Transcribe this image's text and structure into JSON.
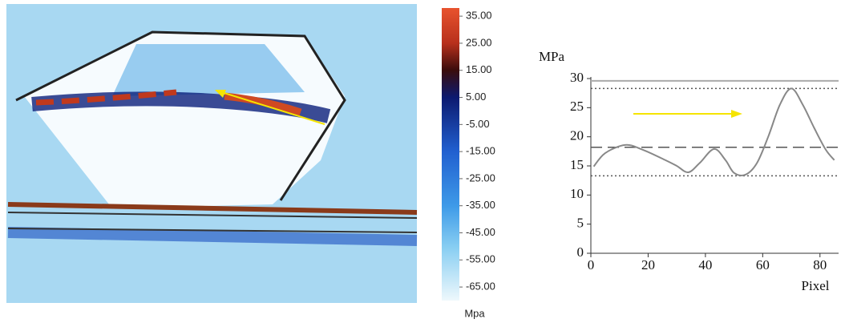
{
  "chart_data": [
    {
      "type": "colorbar",
      "label": "Mpa",
      "ylim": [
        -70,
        38
      ],
      "yticks": [
        {
          "value": 35,
          "label": "35.00"
        },
        {
          "value": 25,
          "label": "25.00"
        },
        {
          "value": 15,
          "label": "15.00"
        },
        {
          "value": 5,
          "label": "5.00"
        },
        {
          "value": -5,
          "label": "-5.00"
        },
        {
          "value": -15,
          "label": "-15.00"
        },
        {
          "value": -25,
          "label": "-25.00"
        },
        {
          "value": -35,
          "label": "-35.00"
        },
        {
          "value": -45,
          "label": "-45.00"
        },
        {
          "value": -55,
          "label": "-55.00"
        },
        {
          "value": -65,
          "label": "-65.00"
        }
      ],
      "colorscale": [
        {
          "value": 38,
          "color": "#e8532e"
        },
        {
          "value": 25,
          "color": "#b8301c"
        },
        {
          "value": 15,
          "color": "#3a0c0c"
        },
        {
          "value": 5,
          "color": "#0c1a70"
        },
        {
          "value": -15,
          "color": "#2160d0"
        },
        {
          "value": -35,
          "color": "#3e9ae8"
        },
        {
          "value": -50,
          "color": "#86cdf2"
        },
        {
          "value": -70,
          "color": "#eef8fc"
        }
      ]
    },
    {
      "type": "line",
      "y_label": "MPa",
      "x_label": "Pixel",
      "color": "#888888",
      "x": [
        1,
        5,
        12,
        18,
        26,
        30,
        34,
        38,
        43,
        47,
        50,
        54,
        58,
        62,
        66,
        70,
        74,
        78,
        82,
        85
      ],
      "values": [
        14.9,
        17.2,
        18.6,
        17.8,
        16.0,
        15.0,
        13.9,
        15.5,
        17.9,
        16.0,
        13.8,
        13.5,
        15.5,
        20.1,
        25.5,
        28.3,
        25.5,
        21.5,
        17.8,
        16.0
      ],
      "xlim": [
        0,
        86.5
      ],
      "ylim": [
        0,
        30
      ],
      "xticks": [
        0,
        20,
        40,
        60,
        80
      ],
      "yticks": [
        0,
        5,
        10,
        15,
        20,
        25,
        30
      ],
      "reference_lines": [
        {
          "value": 29.6,
          "style": "solid",
          "color": "#aaaaaa"
        },
        {
          "value": 28.3,
          "style": "dotted",
          "color": "#555555"
        },
        {
          "value": 18.2,
          "style": "dashed",
          "color": "#555555"
        },
        {
          "value": 13.3,
          "style": "dotted",
          "color": "#555555"
        }
      ],
      "arrow_color": "#f5e400"
    }
  ]
}
